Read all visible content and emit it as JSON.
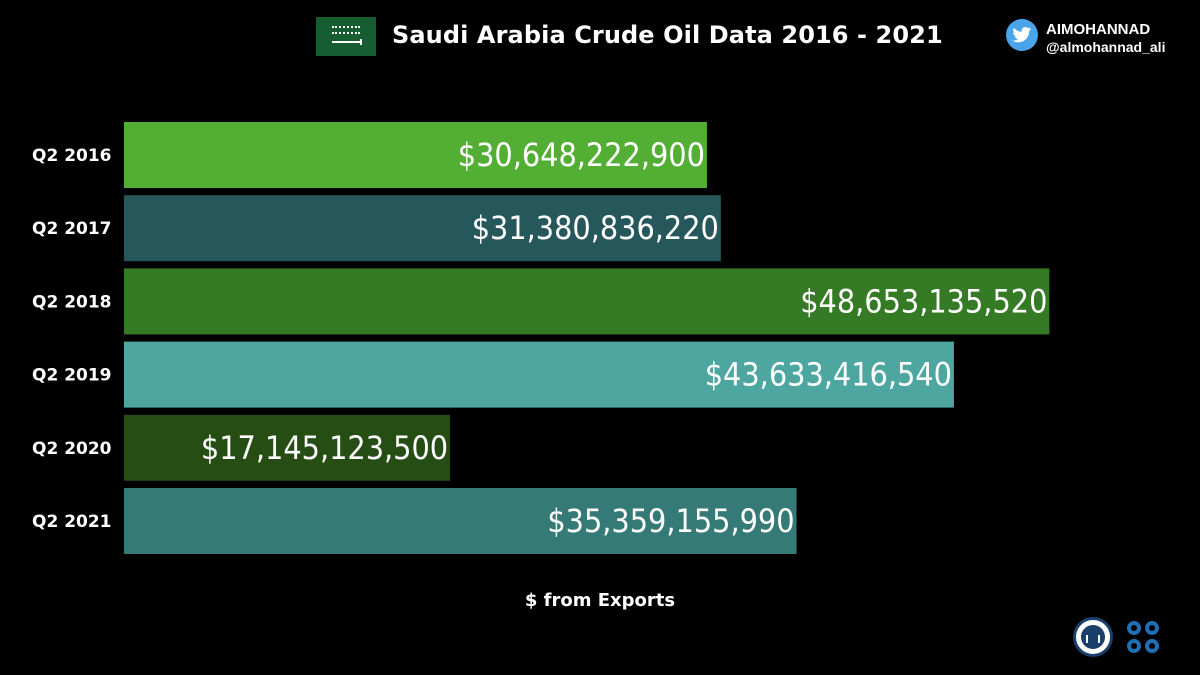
{
  "header": {
    "title": "Saudi Arabia Crude Oil Data 2016 - 2021",
    "flag_icon": "saudi-arabia-flag-icon"
  },
  "brand": {
    "name": "AIMOHANNAD",
    "handle": "@almohannad_ali",
    "icon": "twitter-bird-icon",
    "icon_color": "#4aa4ea"
  },
  "footer": {
    "logos": [
      "general-authority-for-statistics-logo",
      "opec-logo"
    ]
  },
  "chart_data": {
    "type": "bar",
    "orientation": "horizontal",
    "title": "Saudi Arabia Crude Oil Data 2016 - 2021",
    "xlabel": "$ from Exports",
    "ylabel": "",
    "xlim": [
      0,
      50000000000
    ],
    "grid": false,
    "categories": [
      "Q2 2016",
      "Q2 2017",
      "Q2 2018",
      "Q2 2019",
      "Q2 2020",
      "Q2 2021"
    ],
    "values": [
      30648222900,
      31380836220,
      48653135520,
      43633416540,
      17145123500,
      35359155990
    ],
    "value_labels": [
      "$30,648,222,900",
      "$31,380,836,220",
      "$48,653,135,520",
      "$43,633,416,540",
      "$17,145,123,500",
      "$35,359,155,990"
    ],
    "colors": [
      "#53ae34",
      "#25575b",
      "#357a24",
      "#4da7a0",
      "#264d14",
      "#367a77"
    ]
  }
}
